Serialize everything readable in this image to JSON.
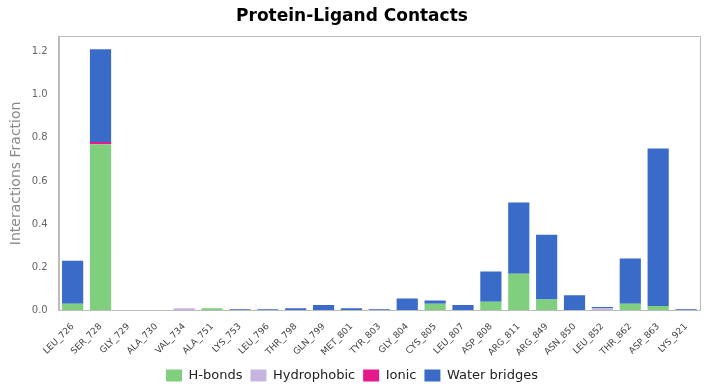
{
  "chart_data": {
    "type": "bar",
    "title": "Protein-Ligand Contacts",
    "y_label": "Interactions Fraction",
    "categories": [
      "LEU_726",
      "SER_728",
      "GLY_729",
      "ALA_730",
      "VAL_734",
      "ALA_751",
      "LYS_753",
      "LEU_796",
      "THR_798",
      "GLN_799",
      "MET_801",
      "TYR_803",
      "GLY_804",
      "CYS_805",
      "LEU_807",
      "ASP_808",
      "ARG_811",
      "ARG_849",
      "ASN_850",
      "LEU_852",
      "THR_862",
      "ASP_863",
      "LYS_921"
    ],
    "series": [
      {
        "name": "H-bonds",
        "color": "#7fcf7f",
        "values": [
          0.03,
          0.77,
          0,
          0,
          0,
          0.01,
          0,
          0,
          0,
          0,
          0,
          0,
          0,
          0.03,
          0,
          0.04,
          0.17,
          0.05,
          0,
          0,
          0.03,
          0.02,
          0
        ]
      },
      {
        "name": "Hydrophobic",
        "color": "#c8b4e0",
        "values": [
          0,
          0,
          0,
          0,
          0.01,
          0,
          0,
          0,
          0,
          0,
          0,
          0,
          0,
          0,
          0,
          0,
          0,
          0,
          0,
          0.01,
          0,
          0,
          0
        ]
      },
      {
        "name": "Ionic",
        "color": "#e6198a",
        "values": [
          0,
          0.01,
          0,
          0,
          0,
          0,
          0,
          0,
          0,
          0,
          0,
          0,
          0,
          0,
          0,
          0,
          0,
          0,
          0,
          0,
          0,
          0,
          0
        ]
      },
      {
        "name": "Water bridges",
        "color": "#3a6bc9",
        "values": [
          0.2,
          0.43,
          0,
          0,
          0,
          0,
          0.005,
          0.005,
          0.01,
          0.025,
          0.01,
          0.005,
          0.055,
          0.015,
          0.025,
          0.14,
          0.33,
          0.3,
          0.07,
          0.005,
          0.21,
          0.73,
          0.005
        ]
      }
    ],
    "stacked": true,
    "ylim": [
      0,
      1.27
    ],
    "yticks": [
      {
        "value": 0,
        "label": "0.0"
      },
      0.2,
      0.4,
      0.6,
      0.8,
      {
        "value": 1,
        "label": "1.0"
      },
      1.2
    ],
    "grid": false,
    "legend": "bottom"
  }
}
